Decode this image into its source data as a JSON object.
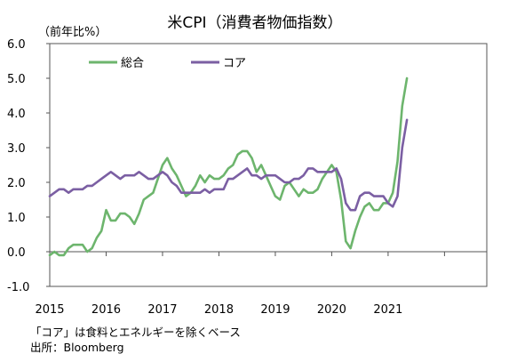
{
  "chart_data": {
    "type": "line",
    "title": "米CPI（消費者物価指数）",
    "unit_label": "（前年比%）",
    "ylim": [
      -1.0,
      6.0
    ],
    "y_ticks": [
      "6.0",
      "5.0",
      "4.0",
      "3.0",
      "2.0",
      "1.0",
      "0.0",
      "-1.0"
    ],
    "y_tick_values": [
      6,
      5,
      4,
      3,
      2,
      1,
      0,
      -1
    ],
    "x_ticks": [
      "2015",
      "2016",
      "2017",
      "2018",
      "2019",
      "2020",
      "2021"
    ],
    "x_tick_values": [
      2015,
      2016,
      2017,
      2018,
      2019,
      2020,
      2021
    ],
    "xlim": [
      2015,
      2022.75
    ],
    "grid": false,
    "legend_position": "top",
    "series": [
      {
        "name": "総合",
        "color": "#6db56d",
        "values": [
          -0.1,
          0.0,
          -0.1,
          -0.1,
          0.1,
          0.2,
          0.2,
          0.2,
          0.0,
          0.1,
          0.4,
          0.6,
          1.2,
          0.9,
          0.9,
          1.1,
          1.1,
          1.0,
          0.8,
          1.1,
          1.5,
          1.6,
          1.7,
          2.1,
          2.5,
          2.7,
          2.4,
          2.2,
          1.9,
          1.6,
          1.7,
          1.9,
          2.2,
          2.0,
          2.2,
          2.1,
          2.1,
          2.2,
          2.4,
          2.5,
          2.8,
          2.9,
          2.9,
          2.7,
          2.3,
          2.5,
          2.2,
          1.9,
          1.6,
          1.5,
          1.9,
          2.0,
          1.8,
          1.6,
          1.8,
          1.7,
          1.7,
          1.8,
          2.1,
          2.3,
          2.5,
          2.3,
          1.5,
          0.3,
          0.1,
          0.6,
          1.0,
          1.3,
          1.4,
          1.2,
          1.2,
          1.4,
          1.4,
          1.7,
          2.6,
          4.2,
          5.0
        ]
      },
      {
        "name": "コア",
        "color": "#7b5fa3",
        "values": [
          1.6,
          1.7,
          1.8,
          1.8,
          1.7,
          1.8,
          1.8,
          1.8,
          1.9,
          1.9,
          2.0,
          2.1,
          2.2,
          2.3,
          2.2,
          2.1,
          2.2,
          2.2,
          2.2,
          2.3,
          2.2,
          2.1,
          2.1,
          2.2,
          2.3,
          2.2,
          2.0,
          1.9,
          1.7,
          1.7,
          1.7,
          1.7,
          1.7,
          1.8,
          1.7,
          1.8,
          1.8,
          1.8,
          2.1,
          2.1,
          2.2,
          2.3,
          2.4,
          2.2,
          2.2,
          2.1,
          2.2,
          2.2,
          2.2,
          2.1,
          2.0,
          2.0,
          2.1,
          2.1,
          2.2,
          2.4,
          2.4,
          2.3,
          2.3,
          2.3,
          2.3,
          2.4,
          2.1,
          1.4,
          1.2,
          1.2,
          1.6,
          1.7,
          1.7,
          1.6,
          1.6,
          1.6,
          1.4,
          1.3,
          1.6,
          3.0,
          3.8
        ]
      }
    ],
    "notes": [
      "「コア」は食料とエネルギーを除くベース",
      "出所：Bloomberg"
    ]
  }
}
